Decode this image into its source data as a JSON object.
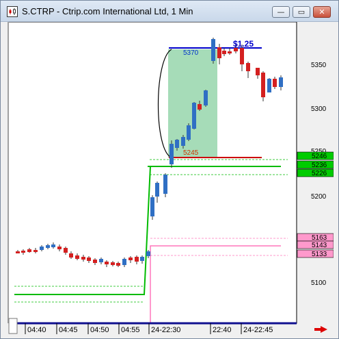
{
  "window": {
    "title": "S.CTRP - Ctrip.com International Ltd, 1 Min",
    "minimize": "—",
    "restore": "▭",
    "close": "✕"
  },
  "chart_data": {
    "type": "candlestick",
    "symbol": "S.CTRP",
    "interval": "1 Min",
    "y_ticks": [
      "5350",
      "5300",
      "5250",
      "5200",
      "5100"
    ],
    "x_ticks": [
      "04:40",
      "04:45",
      "04:50",
      "04:55",
      "24-22:30",
      "22:40",
      "24-22:45"
    ],
    "level_boxes": [
      {
        "label": "5246",
        "color": "#00cc00"
      },
      {
        "label": "5236",
        "color": "#00cc00"
      },
      {
        "label": "5226",
        "color": "#00cc00"
      },
      {
        "label": "5163",
        "color": "#ff99cc"
      },
      {
        "label": "5143",
        "color": "#ff99cc"
      },
      {
        "label": "5133",
        "color": "#ff99cc"
      }
    ],
    "annotations": {
      "high_label": "5370",
      "low_label": "5245",
      "gain_label": "$1.25"
    },
    "colors": {
      "up": "#2f6fc4",
      "down": "#d42020",
      "green_line": "#00bb00",
      "pink_line": "#ff77bb",
      "highlight": "#a6dcb8"
    }
  }
}
